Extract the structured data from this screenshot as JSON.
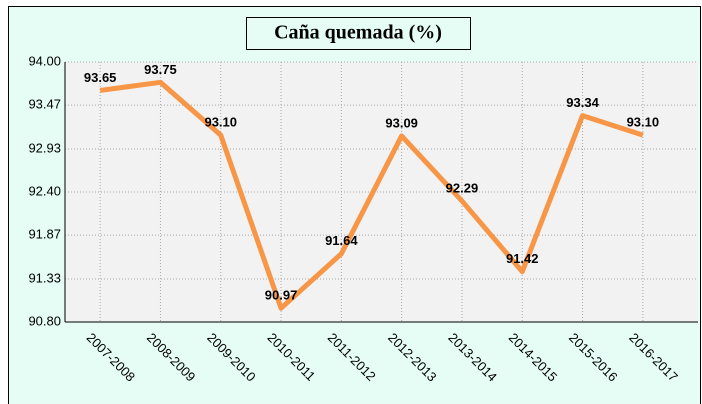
{
  "chart_data": {
    "type": "line",
    "title": "Caña quemada  (%)",
    "categories": [
      "2007-2008",
      "2008-2009",
      "2009-2010",
      "2010-2011",
      "2011-2012",
      "2012-2013",
      "2013-2014",
      "2014-2015",
      "2015-2016",
      "2016-2017"
    ],
    "values": [
      93.65,
      93.75,
      93.1,
      90.97,
      91.64,
      93.09,
      92.29,
      91.42,
      93.34,
      93.1
    ],
    "value_labels": [
      "93.65",
      "93.75",
      "93.10",
      "90.97",
      "91.64",
      "93.09",
      "92.29",
      "91.42",
      "93.34",
      "93.10"
    ],
    "color": "#f79646",
    "ylim": [
      90.8,
      94.0
    ],
    "yticks": [
      {
        "value": 90.8,
        "label": "90.80"
      },
      {
        "value": 91.33,
        "label": "91.33"
      },
      {
        "value": 91.87,
        "label": "91.87"
      },
      {
        "value": 92.4,
        "label": "92.40"
      },
      {
        "value": 92.93,
        "label": "92.93"
      },
      {
        "value": 93.47,
        "label": "93.47"
      },
      {
        "value": 94.0,
        "label": "94.00"
      }
    ],
    "grid": true
  }
}
